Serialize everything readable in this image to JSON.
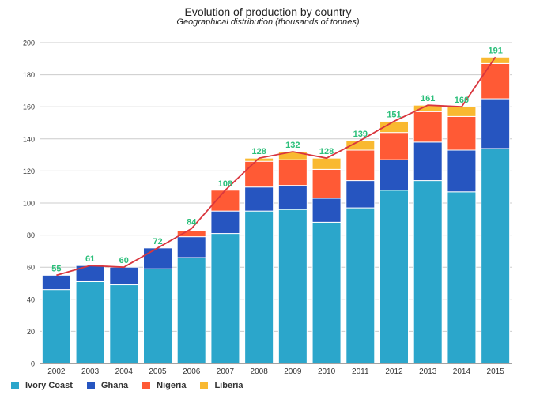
{
  "chart_data": {
    "type": "bar",
    "stacked": true,
    "title": "Evolution of production by country",
    "subtitle": "Geographical distribution (thousands of tonnes)",
    "categories": [
      "2002",
      "2003",
      "2004",
      "2005",
      "2006",
      "2007",
      "2008",
      "2009",
      "2010",
      "2011",
      "2012",
      "2013",
      "2014",
      "2015"
    ],
    "ylim": [
      0,
      200
    ],
    "yticks": [
      0,
      20,
      40,
      60,
      80,
      100,
      120,
      140,
      160,
      180,
      200
    ],
    "grid": true,
    "legend_position": "bottom-left",
    "series": [
      {
        "name": "Ivory Coast",
        "color": "#2ba6cb",
        "values": [
          46,
          51,
          49,
          59,
          66,
          81,
          95,
          96,
          88,
          97,
          108,
          114,
          107,
          134
        ]
      },
      {
        "name": "Ghana",
        "color": "#2655c0",
        "values": [
          9,
          10,
          11,
          13,
          13,
          14,
          15,
          15,
          15,
          17,
          19,
          24,
          26,
          31
        ]
      },
      {
        "name": "Nigeria",
        "color": "#ff5a35",
        "values": [
          0,
          0,
          0,
          0,
          4,
          13,
          16,
          16,
          18,
          19,
          17,
          19,
          21,
          22
        ]
      },
      {
        "name": "Liberia",
        "color": "#f9b931",
        "values": [
          0,
          0,
          0,
          0,
          0,
          0,
          2,
          5,
          7,
          6,
          7,
          4,
          6,
          4
        ]
      }
    ],
    "totals": {
      "color": "#d9363e",
      "label_color": "#2bbf7a",
      "values": [
        55,
        61,
        60,
        72,
        84,
        108,
        128,
        132,
        128,
        139,
        151,
        161,
        160,
        191
      ]
    }
  }
}
